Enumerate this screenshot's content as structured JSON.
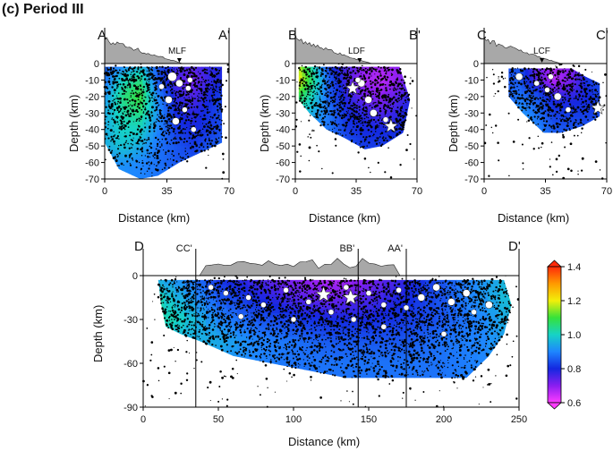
{
  "figure": {
    "title": "(c) Period III",
    "colorbar": {
      "ticks": [
        "1.4",
        "1.2",
        "1.0",
        "0.8",
        "0.6"
      ],
      "range": [
        0.6,
        1.4
      ],
      "colors": [
        "#ff2a0a",
        "#ff9a00",
        "#f2ef0a",
        "#36e23a",
        "#16d3c6",
        "#1e86ff",
        "#1428e0",
        "#8a1ef0",
        "#ff3cff"
      ]
    }
  },
  "chart_data": [
    {
      "type": "heatmap",
      "id": "A",
      "start_label": "A",
      "end_label": "A'",
      "fault_label": "MLF",
      "fault_distance_km": 42,
      "xlabel": "Distance (km)",
      "ylabel": "Depth (km)",
      "xlim": [
        0,
        70
      ],
      "ylim": [
        -70,
        0
      ],
      "xticks": [
        "0",
        "35",
        "70"
      ],
      "yticks": [
        "0",
        "-10",
        "-20",
        "-30",
        "-40",
        "-50",
        "-60",
        "-70"
      ],
      "field": {
        "x": [
          0,
          10,
          20,
          30,
          40,
          50,
          60,
          70
        ],
        "y": [
          0,
          -10,
          -20,
          -30,
          -40,
          -50,
          -60,
          -70
        ],
        "values": [
          [
            0.85,
            0.88,
            0.95,
            0.85,
            0.78,
            0.75,
            0.78,
            0.8
          ],
          [
            0.88,
            1.0,
            1.05,
            0.85,
            0.75,
            0.72,
            0.78,
            0.8
          ],
          [
            0.92,
            1.05,
            1.1,
            0.9,
            0.78,
            0.75,
            0.8,
            0.85
          ],
          [
            0.95,
            1.02,
            1.05,
            0.92,
            0.8,
            0.78,
            0.82,
            0.85
          ],
          [
            0.95,
            1.0,
            1.0,
            0.9,
            0.82,
            0.8,
            0.82,
            0.85
          ],
          [
            0.95,
            0.98,
            0.95,
            0.88,
            0.85,
            0.82,
            0.85,
            0.88
          ],
          [
            0.9,
            0.92,
            0.9,
            0.88,
            0.85,
            0.85,
            0.88,
            0.9
          ],
          [
            0.9,
            0.9,
            0.9,
            0.88,
            0.88,
            0.88,
            0.9,
            0.9
          ]
        ]
      },
      "coverage": [
        [
          0,
          -2
        ],
        [
          66,
          -2
        ],
        [
          66,
          -48
        ],
        [
          52,
          -55
        ],
        [
          42,
          -60
        ],
        [
          30,
          -68
        ],
        [
          20,
          -70
        ],
        [
          8,
          -64
        ],
        [
          0,
          -48
        ]
      ],
      "stars": [],
      "circles": [
        [
          38,
          -8,
          5
        ],
        [
          42,
          -12,
          4
        ],
        [
          47,
          -15,
          3
        ],
        [
          36,
          -22,
          4
        ],
        [
          45,
          -28,
          3
        ],
        [
          40,
          -35,
          4
        ],
        [
          50,
          -40,
          3
        ],
        [
          48,
          -10,
          3
        ],
        [
          32,
          -14,
          3
        ]
      ]
    },
    {
      "type": "heatmap",
      "id": "B",
      "start_label": "B",
      "end_label": "B'",
      "fault_label": "LDF",
      "fault_distance_km": 37,
      "xlabel": "Distance (km)",
      "ylabel": "Depth (km)",
      "xlim": [
        0,
        70
      ],
      "ylim": [
        -70,
        0
      ],
      "xticks": [
        "0",
        "35",
        "70"
      ],
      "yticks": [
        "0",
        "-10",
        "-20",
        "-30",
        "-40",
        "-50",
        "-60",
        "-70"
      ],
      "field": {
        "x": [
          0,
          10,
          20,
          30,
          40,
          50,
          60,
          70
        ],
        "y": [
          0,
          -10,
          -20,
          -30,
          -40,
          -50,
          -60,
          -70
        ],
        "values": [
          [
            1.2,
            1.0,
            0.8,
            0.75,
            0.7,
            0.68,
            0.7,
            0.75
          ],
          [
            1.25,
            1.05,
            0.85,
            0.75,
            0.68,
            0.66,
            0.7,
            0.78
          ],
          [
            1.1,
            1.0,
            0.85,
            0.78,
            0.72,
            0.7,
            0.75,
            0.8
          ],
          [
            1.0,
            0.95,
            0.88,
            0.8,
            0.78,
            0.75,
            0.78,
            0.82
          ],
          [
            0.95,
            0.9,
            0.88,
            0.82,
            0.8,
            0.8,
            0.8,
            0.82
          ],
          [
            0.92,
            0.88,
            0.88,
            0.85,
            0.82,
            0.82,
            0.82,
            0.85
          ],
          [
            0.9,
            0.88,
            0.88,
            0.85,
            0.85,
            0.85,
            0.85,
            0.85
          ],
          [
            0.9,
            0.88,
            0.88,
            0.85,
            0.85,
            0.85,
            0.85,
            0.85
          ]
        ]
      },
      "coverage": [
        [
          2,
          -2
        ],
        [
          60,
          -2
        ],
        [
          66,
          -22
        ],
        [
          62,
          -42
        ],
        [
          50,
          -50
        ],
        [
          40,
          -52
        ],
        [
          28,
          -45
        ],
        [
          18,
          -40
        ],
        [
          8,
          -30
        ],
        [
          2,
          -22
        ]
      ],
      "stars": [
        [
          33,
          -15
        ],
        [
          55,
          -38
        ]
      ],
      "circles": [
        [
          38,
          -12,
          4
        ],
        [
          42,
          -22,
          4
        ],
        [
          45,
          -30,
          4
        ],
        [
          52,
          -34,
          3
        ],
        [
          36,
          -10,
          3
        ]
      ]
    },
    {
      "type": "heatmap",
      "id": "C",
      "start_label": "C",
      "end_label": "C'",
      "fault_label": "LCF",
      "fault_distance_km": 33,
      "xlabel": "Distance (km)",
      "ylabel": "Depth (km)",
      "xlim": [
        0,
        70
      ],
      "ylim": [
        -70,
        0
      ],
      "xticks": [
        "0",
        "35",
        "70"
      ],
      "yticks": [
        "0",
        "-10",
        "-20",
        "-30",
        "-40",
        "-50",
        "-60",
        "-70"
      ],
      "field": {
        "x": [
          0,
          10,
          20,
          30,
          40,
          50,
          60,
          70
        ],
        "y": [
          0,
          -10,
          -20,
          -30,
          -40,
          -50,
          -60,
          -70
        ],
        "values": [
          [
            0.85,
            0.82,
            0.85,
            0.72,
            0.68,
            0.7,
            0.8,
            0.85
          ],
          [
            0.85,
            0.85,
            0.85,
            0.75,
            0.66,
            0.72,
            0.82,
            0.85
          ],
          [
            0.85,
            0.85,
            0.88,
            0.85,
            0.78,
            0.78,
            0.8,
            0.85
          ],
          [
            0.85,
            0.85,
            0.92,
            0.88,
            0.82,
            0.82,
            0.82,
            0.85
          ],
          [
            0.88,
            0.88,
            0.95,
            0.9,
            0.85,
            0.85,
            0.85,
            0.88
          ],
          [
            0.88,
            0.88,
            0.92,
            0.9,
            0.88,
            0.88,
            0.88,
            0.88
          ],
          [
            0.88,
            0.88,
            0.9,
            0.9,
            0.88,
            0.88,
            0.88,
            0.88
          ],
          [
            0.88,
            0.88,
            0.9,
            0.9,
            0.88,
            0.88,
            0.88,
            0.88
          ]
        ]
      },
      "coverage": [
        [
          14,
          -3
        ],
        [
          50,
          -3
        ],
        [
          58,
          -8
        ],
        [
          66,
          -12
        ],
        [
          66,
          -32
        ],
        [
          56,
          -38
        ],
        [
          44,
          -42
        ],
        [
          34,
          -42
        ],
        [
          22,
          -30
        ],
        [
          14,
          -20
        ]
      ],
      "stars": [
        [
          65,
          -27
        ]
      ],
      "circles": [
        [
          20,
          -8,
          4
        ],
        [
          30,
          -12,
          3
        ],
        [
          38,
          -8,
          3
        ],
        [
          42,
          -20,
          4
        ],
        [
          48,
          -28,
          3
        ],
        [
          36,
          -16,
          3
        ]
      ]
    },
    {
      "type": "heatmap",
      "id": "D",
      "start_label": "D",
      "end_label": "D'",
      "xlabel": "Distance (km)",
      "ylabel": "Depth (km)",
      "xlim": [
        0,
        250
      ],
      "ylim": [
        -90,
        0
      ],
      "xticks": [
        "0",
        "50",
        "100",
        "150",
        "200",
        "250"
      ],
      "yticks": [
        "0",
        "-30",
        "-60",
        "-90"
      ],
      "crossings": [
        {
          "label": "CC'",
          "distance_km": 35
        },
        {
          "label": "BB'",
          "distance_km": 143
        },
        {
          "label": "AA'",
          "distance_km": 175
        }
      ],
      "field": {
        "x": [
          0,
          25,
          50,
          75,
          100,
          125,
          150,
          175,
          200,
          225,
          250
        ],
        "y": [
          0,
          -15,
          -30,
          -45,
          -60,
          -75,
          -90
        ],
        "values": [
          [
            0.95,
            0.9,
            0.8,
            0.75,
            0.7,
            0.65,
            0.7,
            0.78,
            0.85,
            0.92,
            0.98
          ],
          [
            1.05,
            0.95,
            0.85,
            0.8,
            0.75,
            0.72,
            0.75,
            0.8,
            0.85,
            0.92,
            1.0
          ],
          [
            1.05,
            1.0,
            0.9,
            0.85,
            0.82,
            0.8,
            0.8,
            0.82,
            0.85,
            0.9,
            0.98
          ],
          [
            1.0,
            0.95,
            0.95,
            0.9,
            0.88,
            0.85,
            0.85,
            0.85,
            0.88,
            0.9,
            0.95
          ],
          [
            0.95,
            0.92,
            0.92,
            0.9,
            0.88,
            0.88,
            0.88,
            0.88,
            0.88,
            0.9,
            0.95
          ],
          [
            0.95,
            0.92,
            0.92,
            0.9,
            0.88,
            0.88,
            0.88,
            0.88,
            0.88,
            0.9,
            0.95
          ],
          [
            0.95,
            0.92,
            0.92,
            0.9,
            0.88,
            0.88,
            0.88,
            0.88,
            0.88,
            0.9,
            0.95
          ]
        ]
      },
      "coverage": [
        [
          10,
          -3
        ],
        [
          240,
          -3
        ],
        [
          245,
          -20
        ],
        [
          240,
          -40
        ],
        [
          230,
          -55
        ],
        [
          215,
          -70
        ],
        [
          175,
          -70
        ],
        [
          135,
          -70
        ],
        [
          100,
          -63
        ],
        [
          60,
          -55
        ],
        [
          38,
          -45
        ],
        [
          25,
          -40
        ],
        [
          15,
          -35
        ],
        [
          12,
          -20
        ]
      ],
      "stars": [
        [
          120,
          -13
        ],
        [
          138,
          -15
        ]
      ],
      "circles": [
        [
          45,
          -8,
          3
        ],
        [
          55,
          -12,
          3
        ],
        [
          70,
          -15,
          3
        ],
        [
          80,
          -20,
          3
        ],
        [
          95,
          -10,
          3
        ],
        [
          110,
          -18,
          3
        ],
        [
          125,
          -25,
          3
        ],
        [
          135,
          -8,
          3
        ],
        [
          150,
          -12,
          3
        ],
        [
          160,
          -20,
          3
        ],
        [
          170,
          -10,
          3
        ],
        [
          175,
          -22,
          3
        ],
        [
          185,
          -15,
          4
        ],
        [
          195,
          -8,
          4
        ],
        [
          205,
          -18,
          4
        ],
        [
          215,
          -12,
          4
        ],
        [
          220,
          -25,
          3
        ],
        [
          230,
          -20,
          4
        ],
        [
          100,
          -30,
          3
        ],
        [
          160,
          -35,
          3
        ],
        [
          200,
          -40,
          3
        ],
        [
          65,
          -28,
          3
        ],
        [
          140,
          -30,
          3
        ]
      ]
    }
  ]
}
